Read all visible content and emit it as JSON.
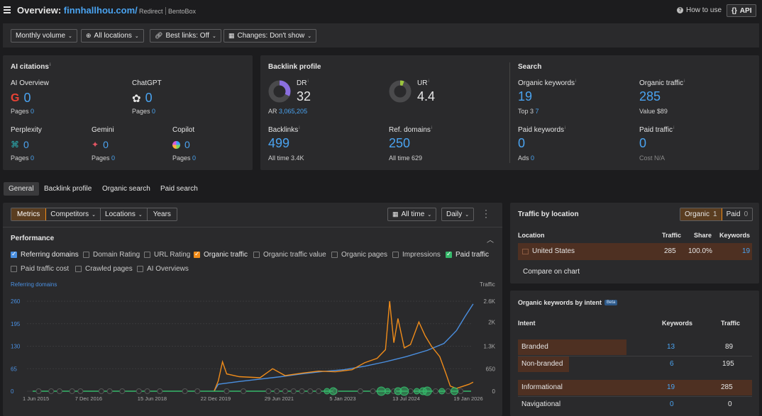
{
  "header": {
    "title_prefix": "Overview:",
    "domain": "finnhallhou.com/",
    "redirect": "Redirect",
    "bentobox": "BentoBox",
    "how_to_use": "How to use",
    "api": "API"
  },
  "toolbar": {
    "monthly_volume": "Monthly volume",
    "all_locations": "All locations",
    "best_links": "Best links: Off",
    "changes": "Changes: Don't show"
  },
  "ai_citations": {
    "title": "AI citations",
    "items": [
      {
        "name": "AI Overview",
        "value": "0",
        "pages_label": "Pages",
        "pages": "0"
      },
      {
        "name": "ChatGPT",
        "value": "0",
        "pages_label": "Pages",
        "pages": "0"
      },
      {
        "name": "Perplexity",
        "value": "0",
        "pages_label": "Pages",
        "pages": "0"
      },
      {
        "name": "Gemini",
        "value": "0",
        "pages_label": "Pages",
        "pages": "0"
      },
      {
        "name": "Copilot",
        "value": "0",
        "pages_label": "Pages",
        "pages": "0"
      }
    ]
  },
  "backlink_profile": {
    "title": "Backlink profile",
    "dr_label": "DR",
    "dr_value": "32",
    "dr_fill": 0.32,
    "ar_label": "AR",
    "ar_value": "3,065,205",
    "ur_label": "UR",
    "ur_value": "4.4",
    "ur_fill": 0.044,
    "backlinks_label": "Backlinks",
    "backlinks_value": "499",
    "backlinks_alltime_label": "All time",
    "backlinks_alltime": "3.4K",
    "refdomains_label": "Ref. domains",
    "refdomains_value": "250",
    "refdomains_alltime_label": "All time",
    "refdomains_alltime": "629"
  },
  "search": {
    "title": "Search",
    "organic_keywords_label": "Organic keywords",
    "organic_keywords_value": "19",
    "top3_label": "Top 3",
    "top3_value": "7",
    "organic_traffic_label": "Organic traffic",
    "organic_traffic_value": "285",
    "value_label": "Value",
    "value_value": "$89",
    "paid_keywords_label": "Paid keywords",
    "paid_keywords_value": "0",
    "ads_label": "Ads",
    "ads_value": "0",
    "paid_traffic_label": "Paid traffic",
    "paid_traffic_value": "0",
    "cost_label": "Cost",
    "cost_value": "N/A"
  },
  "tabs": [
    "General",
    "Backlink profile",
    "Organic search",
    "Paid search"
  ],
  "chart_controls": {
    "metrics": "Metrics",
    "competitors": "Competitors",
    "locations": "Locations",
    "years": "Years",
    "all_time": "All time",
    "daily": "Daily"
  },
  "performance": {
    "title": "Performance",
    "checkboxes": [
      {
        "label": "Referring domains",
        "checked": true,
        "color": "#4a8fe0"
      },
      {
        "label": "Domain Rating",
        "checked": false
      },
      {
        "label": "URL Rating",
        "checked": false
      },
      {
        "label": "Organic traffic",
        "checked": true,
        "color": "#f08c1a"
      },
      {
        "label": "Organic traffic value",
        "checked": false
      },
      {
        "label": "Organic pages",
        "checked": false
      },
      {
        "label": "Impressions",
        "checked": false
      },
      {
        "label": "Paid traffic",
        "checked": true,
        "color": "#35b86a"
      },
      {
        "label": "Paid traffic cost",
        "checked": false
      },
      {
        "label": "Crawled pages",
        "checked": false
      },
      {
        "label": "AI Overviews",
        "checked": false
      }
    ]
  },
  "chart_data": {
    "type": "line",
    "left_axis_label": "Referring domains",
    "right_axis_label": "Traffic",
    "left_ticks": [
      "260",
      "195",
      "130",
      "65",
      "0"
    ],
    "right_ticks": [
      "2.6K",
      "2K",
      "1.3K",
      "650",
      "0"
    ],
    "x_ticks": [
      "1 Jun 2015",
      "7 Dec 2016",
      "15 Jun 2018",
      "22 Dec 2019",
      "29 Jun 2021",
      "5 Jan 2023",
      "13 Jul 2024",
      "19 Jan 2026"
    ],
    "left_range": [
      0,
      260
    ],
    "right_range": [
      0,
      2600
    ],
    "series": [
      {
        "name": "Referring domains",
        "color": "#4a8fe0",
        "axis": "left",
        "points": [
          [
            2019.9,
            0
          ],
          [
            2020.0,
            20
          ],
          [
            2020.5,
            28
          ],
          [
            2021.0,
            35
          ],
          [
            2021.5,
            42
          ],
          [
            2022.0,
            50
          ],
          [
            2022.5,
            57
          ],
          [
            2023.0,
            62
          ],
          [
            2023.5,
            72
          ],
          [
            2024.0,
            85
          ],
          [
            2024.5,
            100
          ],
          [
            2025.0,
            118
          ],
          [
            2025.4,
            138
          ],
          [
            2025.7,
            175
          ],
          [
            2025.9,
            215
          ],
          [
            2026.1,
            252
          ]
        ]
      },
      {
        "name": "Organic traffic",
        "color": "#f08c1a",
        "axis": "right",
        "points": [
          [
            2019.9,
            0
          ],
          [
            2020.0,
            300
          ],
          [
            2020.1,
            850
          ],
          [
            2020.2,
            500
          ],
          [
            2020.5,
            420
          ],
          [
            2021.0,
            390
          ],
          [
            2021.3,
            650
          ],
          [
            2021.6,
            450
          ],
          [
            2022.0,
            520
          ],
          [
            2022.4,
            580
          ],
          [
            2022.8,
            560
          ],
          [
            2023.2,
            620
          ],
          [
            2023.5,
            820
          ],
          [
            2023.8,
            950
          ],
          [
            2024.0,
            1200
          ],
          [
            2024.1,
            2600
          ],
          [
            2024.2,
            1400
          ],
          [
            2024.3,
            2100
          ],
          [
            2024.45,
            1250
          ],
          [
            2024.6,
            1350
          ],
          [
            2024.8,
            2000
          ],
          [
            2024.95,
            1600
          ],
          [
            2025.1,
            1300
          ],
          [
            2025.3,
            1000
          ],
          [
            2025.45,
            500
          ],
          [
            2025.55,
            150
          ],
          [
            2025.7,
            80
          ],
          [
            2026.0,
            200
          ],
          [
            2026.1,
            260
          ]
        ]
      }
    ],
    "annotation_row": {
      "color_gray": "#555",
      "color_green": "#35b86a"
    }
  },
  "traffic_by_location": {
    "title": "Traffic by location",
    "organic_tab": "Organic",
    "organic_count": "1",
    "paid_tab": "Paid",
    "paid_count": "0",
    "columns": [
      "Location",
      "Traffic",
      "Share",
      "Keywords"
    ],
    "rows": [
      {
        "location": "United States",
        "traffic": "285",
        "share": "100.0%",
        "keywords": "19"
      }
    ],
    "compare": "Compare on chart"
  },
  "keywords_by_intent": {
    "title": "Organic keywords by intent",
    "beta": "Beta",
    "columns": [
      "Intent",
      "Keywords",
      "Traffic"
    ],
    "rows": [
      {
        "intent": "Branded",
        "keywords": "13",
        "traffic": "89",
        "bar": 0.68
      },
      {
        "intent": "Non-branded",
        "keywords": "6",
        "traffic": "195",
        "bar": 0.32
      },
      {
        "intent": "Informational",
        "keywords": "19",
        "traffic": "285",
        "bar": 1.0
      },
      {
        "intent": "Navigational",
        "keywords": "0",
        "traffic": "0",
        "bar": 0
      }
    ]
  }
}
